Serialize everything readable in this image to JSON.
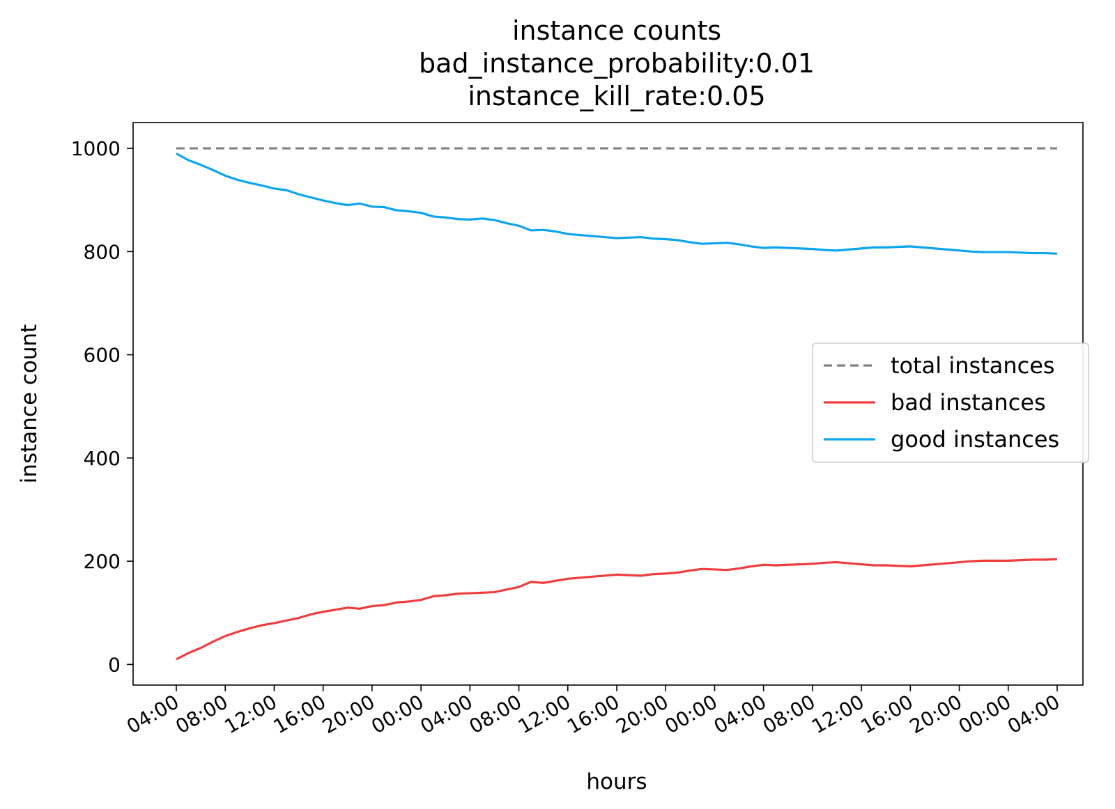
{
  "chart_data": {
    "type": "line",
    "title_lines": [
      "instance counts",
      "bad_instance_probability:0.01",
      "instance_kill_rate:0.05"
    ],
    "xlabel": "hours",
    "ylabel": "instance count",
    "x_start": "04:00",
    "x_end": "04:00",
    "x_ticks": [
      "04:00",
      "08:00",
      "12:00",
      "16:00",
      "20:00",
      "00:00",
      "04:00",
      "08:00",
      "12:00",
      "16:00",
      "20:00",
      "00:00",
      "04:00",
      "08:00",
      "12:00",
      "16:00",
      "20:00",
      "00:00",
      "04:00"
    ],
    "x_points": [
      0,
      1,
      2,
      3,
      4,
      5,
      6,
      7,
      8,
      9,
      10,
      11,
      12,
      13,
      14,
      15,
      16,
      17,
      18,
      19,
      20,
      21,
      22,
      23,
      24,
      25,
      26,
      27,
      28,
      29,
      30,
      31,
      32,
      33,
      34,
      35,
      36,
      37,
      38,
      39,
      40,
      41,
      42,
      43,
      44,
      45,
      46,
      47,
      48,
      49,
      50,
      51,
      52,
      53,
      54,
      55,
      56,
      57,
      58,
      59,
      60,
      61,
      62,
      63,
      64,
      65,
      66,
      67,
      68,
      69,
      70,
      71,
      72
    ],
    "y_ticks": [
      0,
      200,
      400,
      600,
      800,
      1000
    ],
    "ylim": [
      -40,
      1050
    ],
    "legend_position": "center-right",
    "series": [
      {
        "name": "total instances",
        "color": "#808080",
        "dash": true,
        "values": [
          1000,
          1000,
          1000,
          1000,
          1000,
          1000,
          1000,
          1000,
          1000,
          1000,
          1000,
          1000,
          1000,
          1000,
          1000,
          1000,
          1000,
          1000,
          1000,
          1000,
          1000,
          1000,
          1000,
          1000,
          1000,
          1000,
          1000,
          1000,
          1000,
          1000,
          1000,
          1000,
          1000,
          1000,
          1000,
          1000,
          1000,
          1000,
          1000,
          1000,
          1000,
          1000,
          1000,
          1000,
          1000,
          1000,
          1000,
          1000,
          1000,
          1000,
          1000,
          1000,
          1000,
          1000,
          1000,
          1000,
          1000,
          1000,
          1000,
          1000,
          1000,
          1000,
          1000,
          1000,
          1000,
          1000,
          1000,
          1000,
          1000,
          1000,
          1000,
          1000,
          1000
        ]
      },
      {
        "name": "bad instances",
        "color": "#f03c3c",
        "dash": false,
        "values": [
          10,
          22,
          32,
          44,
          55,
          63,
          70,
          76,
          80,
          85,
          90,
          97,
          102,
          106,
          110,
          108,
          113,
          115,
          120,
          122,
          125,
          132,
          134,
          137,
          138,
          139,
          140,
          145,
          150,
          160,
          158,
          162,
          166,
          168,
          170,
          172,
          174,
          173,
          172,
          175,
          176,
          178,
          182,
          185,
          184,
          183,
          186,
          190,
          193,
          192,
          193,
          194,
          195,
          197,
          198,
          196,
          194,
          192,
          192,
          191,
          190,
          192,
          194,
          196,
          198,
          200,
          201,
          201,
          201,
          202,
          203,
          203,
          204
        ]
      },
      {
        "name": "good instances",
        "color": "#0ba4f0",
        "dash": false,
        "values": [
          990,
          977,
          968,
          958,
          947,
          939,
          933,
          928,
          922,
          919,
          911,
          905,
          899,
          894,
          890,
          893,
          887,
          886,
          880,
          878,
          875,
          868,
          866,
          863,
          862,
          864,
          861,
          855,
          850,
          841,
          842,
          839,
          834,
          832,
          830,
          828,
          826,
          827,
          828,
          825,
          824,
          822,
          818,
          815,
          816,
          817,
          814,
          810,
          807,
          808,
          807,
          806,
          805,
          803,
          802,
          804,
          806,
          808,
          808,
          809,
          810,
          808,
          806,
          804,
          802,
          800,
          799,
          799,
          799,
          798,
          797,
          797,
          796
        ]
      }
    ]
  }
}
